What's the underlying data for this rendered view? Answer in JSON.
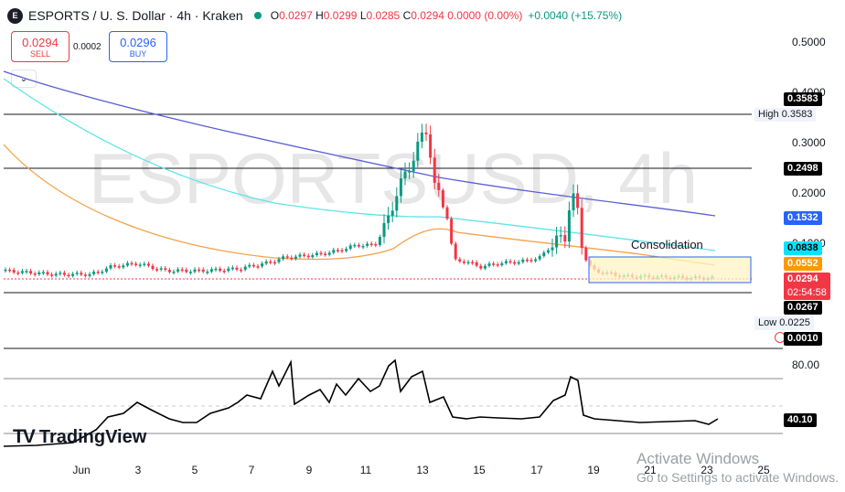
{
  "header": {
    "logo_text": "E",
    "title": "ESPORTS / U. S. Dollar · 4h · Kraken",
    "open_label": "O",
    "open": "0.0297",
    "high_label": "H",
    "high": "0.0299",
    "low_label": "L",
    "low": "0.0285",
    "close_label": "C",
    "close": "0.0294",
    "change": "0.0000 (0.00%)",
    "change_extra": "+0.0040 (+15.75%)"
  },
  "trade": {
    "sell_price": "0.0294",
    "sell_label": "SELL",
    "spread": "0.0002",
    "buy_price": "0.0296",
    "buy_label": "BUY"
  },
  "watermark": "ESPORTSUSD, 4h",
  "annotation": "Consolidation",
  "price_axis": {
    "ticks": [
      {
        "label": "0.5000",
        "value": 0.5
      },
      {
        "label": "0.4000",
        "value": 0.4
      },
      {
        "label": "0.3000",
        "value": 0.3
      },
      {
        "label": "0.2000",
        "value": 0.2
      },
      {
        "label": "0.1000",
        "value": 0.1
      }
    ],
    "tags": {
      "high_line": "0.3583",
      "resistance": "0.2498",
      "ma_blue": "0.1532",
      "ma_cyan": "0.0838",
      "ma_orange": "0.0552",
      "last_price": "0.0294",
      "countdown": "02:54:58",
      "support": "0.0267",
      "low_price": "0.0225",
      "bottom": "0.0010"
    },
    "high_label": "High",
    "high_value": "0.3583",
    "low_label": "Low",
    "low_value": "0.0225"
  },
  "indicator_axis": {
    "level_80": "80.00",
    "current": "40.10"
  },
  "time_axis": [
    "Jun",
    "3",
    "5",
    "7",
    "9",
    "11",
    "13",
    "15",
    "17",
    "19",
    "21",
    "23",
    "25"
  ],
  "branding": {
    "logo": "TV",
    "name": "TradingView"
  },
  "os_notice": {
    "title": "Activate Windows",
    "subtitle": "Go to Settings to activate Windows."
  },
  "colors": {
    "up": "#089981",
    "down": "#f23645",
    "ma_blue": "#5b5fd6",
    "ma_cyan": "#5ce5e8",
    "ma_orange": "#f6a14a",
    "tag_blue": "#2962ff",
    "tag_cyan": "#00e5ff",
    "tag_orange": "#ff9800",
    "tag_red": "#f23645",
    "tag_black": "#000000"
  }
}
